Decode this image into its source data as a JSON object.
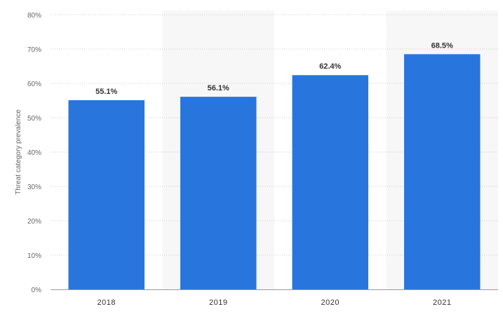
{
  "chart_data": {
    "type": "bar",
    "categories": [
      "2018",
      "2019",
      "2020",
      "2021"
    ],
    "values": [
      55.1,
      56.1,
      62.4,
      68.5
    ],
    "data_labels": [
      "55.1%",
      "56.1%",
      "62.4%",
      "68.5%"
    ],
    "title": "",
    "xlabel": "",
    "ylabel": "Threat category prevalence",
    "ylim": [
      0,
      80
    ],
    "yticks": [
      0,
      10,
      20,
      30,
      40,
      50,
      60,
      70,
      80
    ],
    "ytick_labels": [
      "0%",
      "10%",
      "20%",
      "30%",
      "40%",
      "50%",
      "60%",
      "70%",
      "80%"
    ],
    "grid": true,
    "colors": {
      "bar": "#2876dd",
      "band": "#f7f7f7",
      "grid": "#cccccc",
      "axis": "#999999"
    }
  }
}
